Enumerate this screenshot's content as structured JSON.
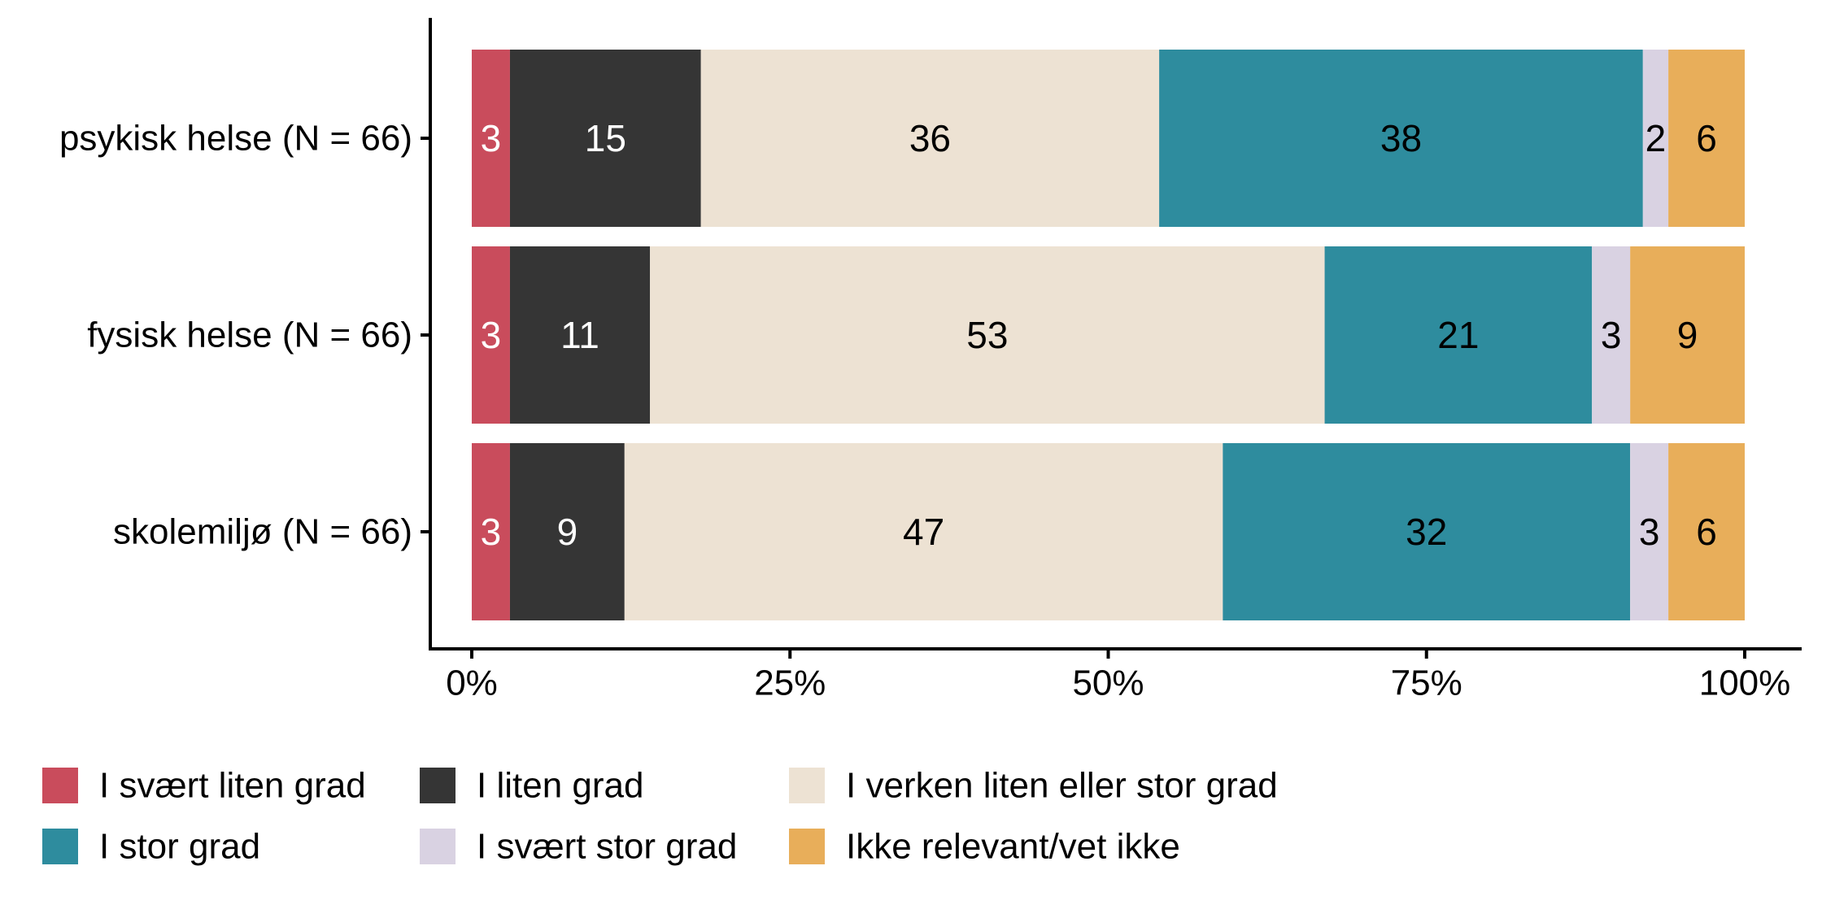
{
  "chart_data": {
    "type": "bar",
    "orientation": "horizontal",
    "stacked": true,
    "percent": true,
    "categories": [
      "psykisk helse (N = 66)",
      "fysisk helse (N = 66)",
      "skolemiljø (N = 66)"
    ],
    "series": [
      {
        "name": "I svært liten grad",
        "color": "#C94C5C",
        "label_color": "#ffffff",
        "values": [
          3,
          3,
          3
        ]
      },
      {
        "name": "I liten grad",
        "color": "#353535",
        "label_color": "#ffffff",
        "values": [
          15,
          11,
          9
        ]
      },
      {
        "name": "I verken liten eller stor grad",
        "color": "#EDE2D3",
        "label_color": "#000000",
        "values": [
          36,
          53,
          47
        ]
      },
      {
        "name": "I stor grad",
        "color": "#2E8C9E",
        "label_color": "#000000",
        "values": [
          38,
          21,
          32
        ]
      },
      {
        "name": "I svært stor grad",
        "color": "#D9D2E2",
        "label_color": "#000000",
        "values": [
          2,
          3,
          3
        ]
      },
      {
        "name": "Ikke relevant/vet ikke",
        "color": "#E8AE5A",
        "label_color": "#000000",
        "values": [
          6,
          9,
          6
        ]
      }
    ],
    "xlim": [
      0,
      100
    ],
    "xticks": [
      0,
      25,
      50,
      75,
      100
    ],
    "xtick_labels": [
      "0%",
      "25%",
      "50%",
      "75%",
      "100%"
    ],
    "title": "",
    "xlabel": "",
    "ylabel": "",
    "legend_position": "bottom",
    "grid": false
  }
}
